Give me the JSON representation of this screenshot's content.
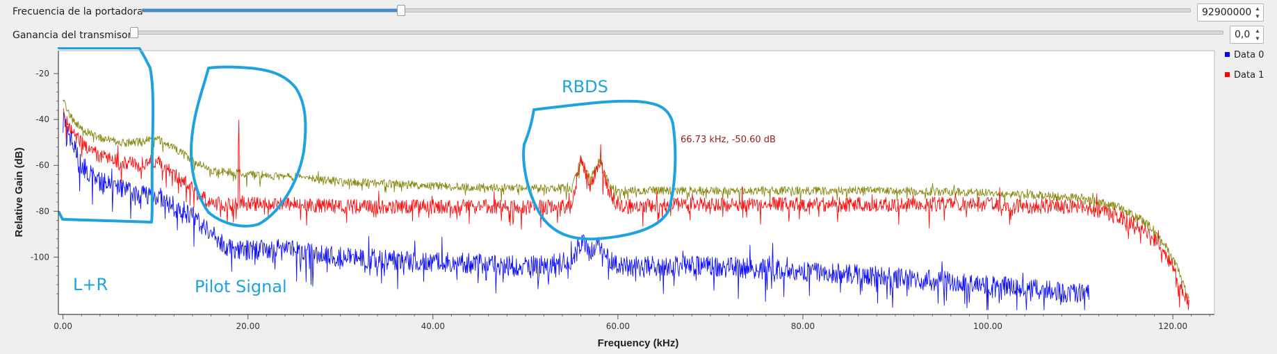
{
  "controls": {
    "carrier_label": "Frecuencia de la portadora",
    "carrier_value": "92900000",
    "carrier_fraction": 0.2475,
    "gain_label": "Ganancia del transmisor",
    "gain_value": "0,0",
    "gain_fraction": 0.0
  },
  "legend": [
    {
      "name": "Data 0",
      "color": "#0000ff"
    },
    {
      "name": "Data 1",
      "color": "#ff0000"
    }
  ],
  "annotations": {
    "lr": "L+R",
    "pilot": "Pilot Signal",
    "rbds": "RBDS",
    "marker": "66.73 kHz, -50.60 dB",
    "ink_color": "#1ea3e0"
  },
  "chart_data": {
    "type": "line",
    "xlabel": "Frequency (kHz)",
    "ylabel": "Relative Gain (dB)",
    "xlim": [
      -0.5,
      124.5
    ],
    "ylim": [
      -125,
      -10
    ],
    "xticks": [
      0,
      20,
      40,
      60,
      80,
      100,
      120
    ],
    "xtick_labels": [
      "0.00",
      "20.00",
      "40.00",
      "60.00",
      "80.00",
      "100.00",
      "120.00"
    ],
    "yticks": [
      -20,
      -40,
      -60,
      -80,
      -100
    ],
    "ytick_labels": [
      "-20",
      "-40",
      "-60",
      "-80",
      "-100"
    ],
    "series": [
      {
        "name": "Data 0",
        "color": "#0000ff",
        "x": [
          0,
          1,
          2,
          4,
          6,
          8,
          10,
          12,
          13,
          14,
          15,
          16,
          17,
          18,
          19,
          20,
          25,
          30,
          40,
          50,
          55,
          56,
          57,
          58,
          59,
          60,
          70,
          80,
          90,
          100,
          105,
          110,
          111
        ],
        "y": [
          -38,
          -50,
          -60,
          -67,
          -70,
          -72,
          -73,
          -78,
          -80,
          -82,
          -86,
          -90,
          -93,
          -96,
          -97,
          -97,
          -97,
          -100,
          -102,
          -104,
          -102,
          -93,
          -98,
          -94,
          -100,
          -104,
          -104,
          -106,
          -109,
          -112,
          -114,
          -116,
          -116
        ]
      },
      {
        "name": "",
        "color": "#7f7f00",
        "x": [
          0,
          1,
          2,
          4,
          6,
          8,
          10,
          12,
          14,
          16,
          18,
          20,
          25,
          30,
          40,
          50,
          55,
          56,
          57,
          58,
          59,
          60,
          70,
          80,
          90,
          100,
          105,
          110,
          114,
          116,
          118,
          120,
          121,
          121.8
        ],
        "y": [
          -32,
          -40,
          -44,
          -48,
          -50,
          -50,
          -48,
          -52,
          -58,
          -62,
          -63,
          -64,
          -65,
          -67,
          -69,
          -70,
          -70,
          -57,
          -66,
          -58,
          -68,
          -71,
          -71,
          -71,
          -71,
          -72,
          -73,
          -74,
          -78,
          -82,
          -88,
          -100,
          -110,
          -120
        ]
      },
      {
        "name": "Data 1",
        "color": "#ff0000",
        "x": [
          0,
          1,
          2,
          4,
          6,
          8,
          10,
          12,
          14,
          15,
          16,
          17,
          18,
          18.9,
          19,
          19.1,
          20,
          25,
          30,
          40,
          50,
          55,
          56,
          57,
          58,
          59,
          60,
          70,
          80,
          90,
          100,
          105,
          110,
          114,
          116,
          118,
          120,
          121,
          121.8
        ],
        "y": [
          -38,
          -45,
          -50,
          -56,
          -58,
          -60,
          -58,
          -64,
          -70,
          -74,
          -76,
          -77,
          -77,
          -76,
          -32,
          -76,
          -77,
          -77,
          -78,
          -78,
          -78,
          -78,
          -56,
          -70,
          -57,
          -72,
          -78,
          -77,
          -77,
          -77,
          -77,
          -78,
          -78,
          -82,
          -86,
          -92,
          -104,
          -114,
          -122
        ]
      }
    ]
  }
}
